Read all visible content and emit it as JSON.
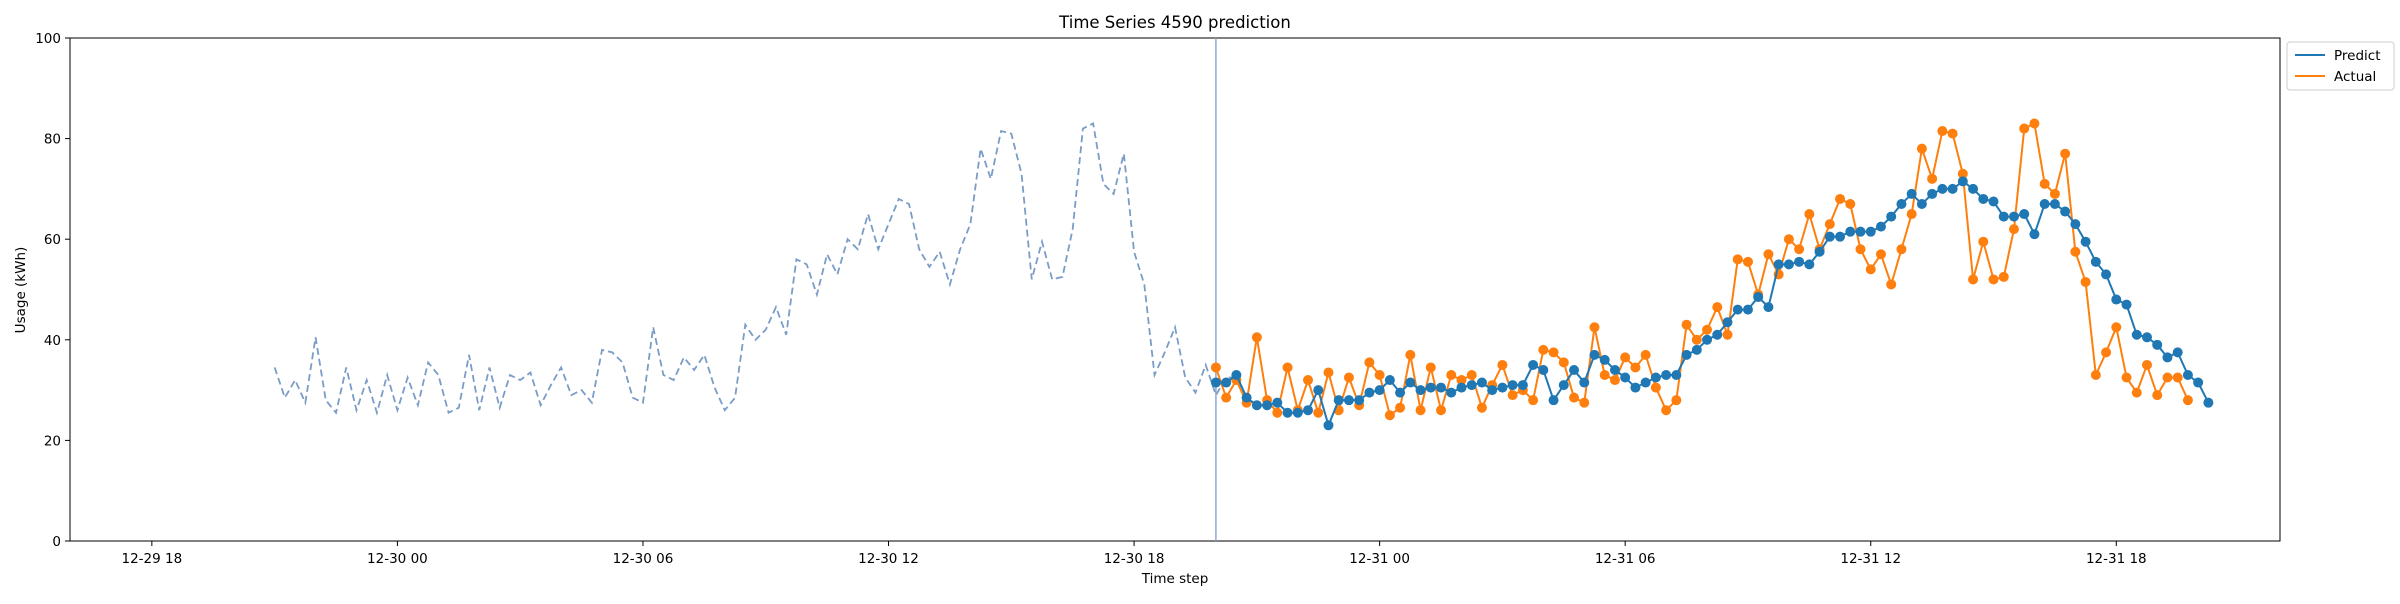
{
  "chart_data": {
    "type": "line",
    "title": "Time Series 4590 prediction",
    "xlabel": "Time step",
    "ylabel": "Usage (kWh)",
    "ylim": [
      0,
      100
    ],
    "yticks": [
      "0",
      "20",
      "40",
      "60",
      "80",
      "100"
    ],
    "xlim": [
      "2023-12-29T16:00",
      "2023-12-31T22:00"
    ],
    "xticks": [
      {
        "t": "2023-12-29T18:00",
        "label": "12-29 18"
      },
      {
        "t": "2023-12-30T00:00",
        "label": "12-30 00"
      },
      {
        "t": "2023-12-30T06:00",
        "label": "12-30 06"
      },
      {
        "t": "2023-12-30T12:00",
        "label": "12-30 12"
      },
      {
        "t": "2023-12-30T18:00",
        "label": "12-30 18"
      },
      {
        "t": "2023-12-31T00:00",
        "label": "12-31 00"
      },
      {
        "t": "2023-12-31T06:00",
        "label": "12-31 06"
      },
      {
        "t": "2023-12-31T12:00",
        "label": "12-31 12"
      },
      {
        "t": "2023-12-31T18:00",
        "label": "12-31 18"
      }
    ],
    "time_step_minutes": 15,
    "history_start": "2023-12-29T21:00",
    "forecast_start": "2023-12-30T20:00",
    "forecast_marker": "2023-12-30T20:00",
    "legend_position": "upper right, outside plot",
    "colors": {
      "predict": "#1f77b4",
      "actual": "#ff7f0e",
      "history": "#7a9cc6",
      "marker": "#8fa7d6"
    },
    "history": [
      34.5,
      28.5,
      32,
      27.5,
      40.5,
      28,
      25.5,
      34.5,
      26,
      32,
      25.5,
      33,
      26,
      32.5,
      27,
      35.5,
      33,
      25.5,
      26.5,
      37,
      26,
      34.5,
      26.5,
      33,
      32,
      33.5,
      27,
      31,
      34.5,
      29,
      30,
      27.5,
      38,
      37.5,
      35.5,
      28.5,
      27.5,
      42.5,
      33,
      32,
      36.5,
      34,
      37,
      30.5,
      26,
      28.5,
      43,
      40,
      42,
      46.5,
      41,
      56,
      55,
      49,
      57,
      53,
      60,
      58,
      65,
      58,
      63,
      68,
      67,
      58,
      54.5,
      57.5,
      51,
      58,
      63,
      78,
      72,
      81.5,
      81,
      73,
      52,
      59.5,
      52,
      52.5,
      62,
      82,
      83,
      71,
      69,
      77,
      57.5,
      51,
      33,
      37.5,
      42.5,
      32.5,
      29.5,
      35,
      29,
      32.5,
      32.5,
      28
    ],
    "series": [
      {
        "name": "Predict",
        "values": [
          31.5,
          31.5,
          33,
          28.5,
          27,
          27,
          27.5,
          25.5,
          25.5,
          26,
          30,
          23,
          28,
          28,
          28,
          29.5,
          30,
          32,
          29.5,
          31.5,
          30,
          30.5,
          30.5,
          29.5,
          30.5,
          31,
          31.5,
          30,
          30.5,
          31,
          31,
          35,
          34,
          28,
          31,
          34,
          31.5,
          37,
          36,
          34,
          32.5,
          30.5,
          31.5,
          32.5,
          33,
          33,
          37,
          38,
          40,
          41,
          43.5,
          46,
          46,
          48.5,
          46.5,
          55,
          55,
          55.5,
          55,
          57.5,
          60.5,
          60.5,
          61.5,
          61.5,
          61.5,
          62.5,
          64.5,
          67,
          69,
          67,
          69,
          70,
          70,
          71.5,
          70,
          68,
          67.5,
          64.5,
          64.5,
          65,
          61,
          67,
          67,
          65.5,
          63,
          59.5,
          55.5,
          53,
          48,
          47,
          41,
          40.5,
          39,
          36.5,
          37.5,
          33,
          31.5,
          27.5
        ]
      },
      {
        "name": "Actual",
        "values": [
          34.5,
          28.5,
          32,
          27.5,
          40.5,
          28,
          25.5,
          34.5,
          26,
          32,
          25.5,
          33.5,
          26,
          32.5,
          27,
          35.5,
          33,
          25,
          26.5,
          37,
          26,
          34.5,
          26,
          33,
          32,
          33,
          26.5,
          31,
          35,
          29,
          30,
          28,
          38,
          37.5,
          35.5,
          28.5,
          27.5,
          42.5,
          33,
          32,
          36.5,
          34.5,
          37,
          30.5,
          26,
          28,
          43,
          40,
          42,
          46.5,
          41,
          56,
          55.5,
          49,
          57,
          53,
          60,
          58,
          65,
          58,
          63,
          68,
          67,
          58,
          54,
          57,
          51,
          58,
          65,
          78,
          72,
          81.5,
          81,
          73,
          52,
          59.5,
          52,
          52.5,
          62,
          82,
          83,
          71,
          69,
          77,
          57.5,
          51.5,
          33,
          37.5,
          42.5,
          32.5,
          29.5,
          35,
          29,
          32.5,
          32.5,
          28
        ]
      }
    ]
  }
}
